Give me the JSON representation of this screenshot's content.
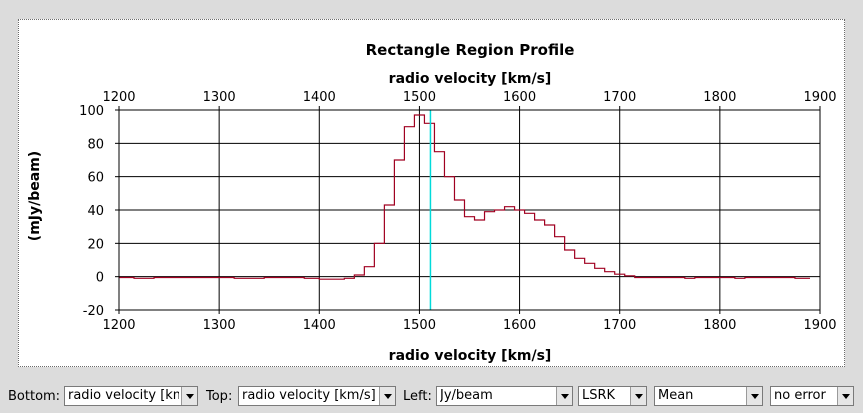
{
  "chart_data": {
    "type": "line",
    "title": "Rectangle Region Profile",
    "xlabel_top": "radio velocity [km/s]",
    "xlabel_bottom": "radio velocity [km/s]",
    "ylabel": "(mJy/beam)",
    "xlim": [
      1200,
      1900
    ],
    "ylim": [
      -20,
      100
    ],
    "xticks": [
      1200,
      1300,
      1400,
      1500,
      1600,
      1700,
      1800,
      1900
    ],
    "yticks": [
      -20,
      0,
      20,
      40,
      60,
      80,
      100
    ],
    "grid": true,
    "step": true,
    "series": [
      {
        "color": "#a00020",
        "x": [
          1200,
          1215,
          1235,
          1315,
          1345,
          1385,
          1400,
          1425,
          1435,
          1445,
          1455,
          1465,
          1475,
          1485,
          1495,
          1505,
          1515,
          1525,
          1535,
          1545,
          1555,
          1565,
          1575,
          1585,
          1595,
          1605,
          1615,
          1625,
          1635,
          1645,
          1655,
          1665,
          1675,
          1685,
          1695,
          1705,
          1715,
          1725,
          1765,
          1775,
          1815,
          1825,
          1835,
          1875,
          1890
        ],
        "y": [
          -0.5,
          -1,
          -0.5,
          -1,
          -0.5,
          -1,
          -1.5,
          -1,
          1,
          6,
          20,
          43,
          70,
          90,
          97,
          92,
          75,
          60,
          46,
          36,
          34,
          39,
          40,
          42,
          40,
          38,
          34,
          31,
          24,
          16,
          11,
          8,
          5,
          3,
          1.5,
          0.5,
          -0.5,
          -0.5,
          -1,
          -0.5,
          -1,
          -0.5,
          -0.5,
          -1,
          -1
        ]
      }
    ],
    "marker": {
      "x": 1511,
      "color": "#00dada"
    }
  },
  "controls": {
    "bottom_label": "Bottom:",
    "bottom_value": "radio velocity [km/s]",
    "top_label": "Top:",
    "top_value": "radio velocity [km/s]",
    "left_label": "Left:",
    "left_value": "Jy/beam",
    "frame_value": "LSRK",
    "stat_value": "Mean",
    "error_value": "no error"
  }
}
